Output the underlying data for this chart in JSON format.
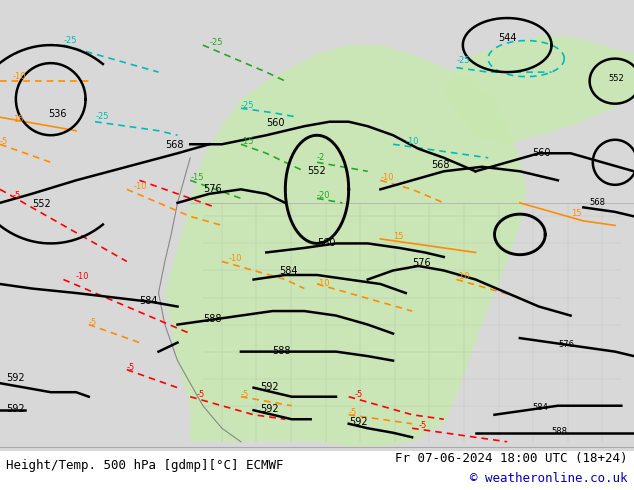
{
  "title_left": "Height/Temp. 500 hPa [gdmp][°C] ECMWF",
  "title_right": "Fr 07-06-2024 18:00 UTC (18+24)",
  "copyright": "© weatheronline.co.uk",
  "background_map": "#e8e8e8",
  "land_color": "#d0d0d0",
  "green_fill": "#c8e8b0",
  "fig_width": 6.34,
  "fig_height": 4.9,
  "dpi": 100,
  "bottom_bar_color": "#f0f0f0",
  "title_fontsize": 9,
  "copyright_color": "#0000cc",
  "contour_color_black": "#000000",
  "contour_color_orange": "#ff8c00",
  "contour_color_red": "#ff0000",
  "contour_color_cyan": "#00bbbb",
  "contour_color_green": "#22aa22",
  "label_fontsize": 7
}
